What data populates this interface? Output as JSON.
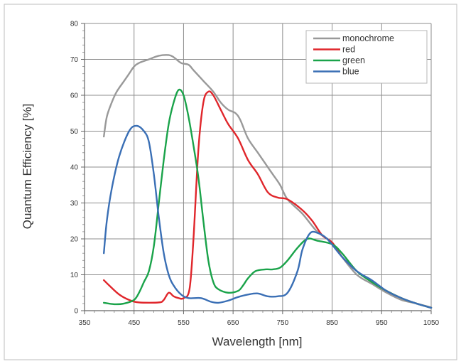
{
  "chart_data": {
    "type": "line",
    "xlabel": "Wavelength [nm]",
    "ylabel": "Quantum Efficiency [%]",
    "xlim": [
      350,
      1050
    ],
    "ylim": [
      0,
      80
    ],
    "xticks": [
      "350",
      "450",
      "550",
      "650",
      "750",
      "850",
      "950",
      "1050"
    ],
    "yticks": [
      "0",
      "10",
      "20",
      "30",
      "40",
      "50",
      "60",
      "70",
      "80"
    ],
    "grid": true,
    "legend_position": "top-right",
    "series": [
      {
        "name": "monochrome",
        "color": "#999999",
        "points": [
          [
            389,
            48.5
          ],
          [
            395,
            54
          ],
          [
            405,
            58
          ],
          [
            415,
            61
          ],
          [
            430,
            64
          ],
          [
            440,
            66
          ],
          [
            450,
            68
          ],
          [
            460,
            69
          ],
          [
            480,
            70
          ],
          [
            500,
            71
          ],
          [
            520,
            71.2
          ],
          [
            530,
            70.6
          ],
          [
            545,
            69
          ],
          [
            560,
            68.5
          ],
          [
            570,
            67
          ],
          [
            590,
            64
          ],
          [
            610,
            61
          ],
          [
            625,
            58
          ],
          [
            640,
            56
          ],
          [
            655,
            55
          ],
          [
            665,
            53
          ],
          [
            680,
            48
          ],
          [
            700,
            44
          ],
          [
            715,
            41
          ],
          [
            730,
            38
          ],
          [
            745,
            35
          ],
          [
            760,
            31
          ],
          [
            790,
            27
          ],
          [
            820,
            22
          ],
          [
            850,
            19
          ],
          [
            870,
            15
          ],
          [
            900,
            10
          ],
          [
            930,
            7.5
          ],
          [
            960,
            5
          ],
          [
            990,
            3
          ],
          [
            1020,
            2
          ],
          [
            1050,
            0.9
          ]
        ]
      },
      {
        "name": "red",
        "color": "#e0262b",
        "points": [
          [
            389,
            8.5
          ],
          [
            400,
            7
          ],
          [
            420,
            4.5
          ],
          [
            440,
            3
          ],
          [
            460,
            2.3
          ],
          [
            500,
            2.3
          ],
          [
            510,
            3
          ],
          [
            520,
            5
          ],
          [
            530,
            4
          ],
          [
            540,
            3.5
          ],
          [
            550,
            3.5
          ],
          [
            562,
            6
          ],
          [
            570,
            20
          ],
          [
            580,
            45
          ],
          [
            590,
            58
          ],
          [
            600,
            61
          ],
          [
            610,
            60
          ],
          [
            625,
            56
          ],
          [
            640,
            52
          ],
          [
            660,
            48
          ],
          [
            680,
            42
          ],
          [
            700,
            38
          ],
          [
            720,
            33
          ],
          [
            740,
            31.5
          ],
          [
            760,
            31
          ],
          [
            790,
            28
          ],
          [
            810,
            25
          ],
          [
            830,
            21
          ],
          [
            850,
            19
          ],
          [
            870,
            15
          ],
          [
            900,
            11
          ],
          [
            925,
            8.5
          ],
          [
            960,
            5.5
          ],
          [
            990,
            3.5
          ],
          [
            1020,
            2
          ],
          [
            1050,
            0.8
          ]
        ]
      },
      {
        "name": "green",
        "color": "#1aa34a",
        "points": [
          [
            389,
            2.2
          ],
          [
            410,
            1.8
          ],
          [
            430,
            2
          ],
          [
            450,
            3
          ],
          [
            460,
            5
          ],
          [
            470,
            8
          ],
          [
            480,
            11
          ],
          [
            490,
            18
          ],
          [
            500,
            30
          ],
          [
            510,
            42
          ],
          [
            520,
            52
          ],
          [
            530,
            58
          ],
          [
            540,
            61.5
          ],
          [
            550,
            60
          ],
          [
            560,
            54
          ],
          [
            570,
            46
          ],
          [
            580,
            37
          ],
          [
            590,
            25
          ],
          [
            600,
            14
          ],
          [
            610,
            8
          ],
          [
            620,
            6
          ],
          [
            640,
            5
          ],
          [
            660,
            5.5
          ],
          [
            670,
            7
          ],
          [
            680,
            9
          ],
          [
            695,
            11
          ],
          [
            715,
            11.5
          ],
          [
            730,
            11.5
          ],
          [
            745,
            12
          ],
          [
            760,
            14
          ],
          [
            780,
            17.5
          ],
          [
            800,
            20
          ],
          [
            820,
            19.5
          ],
          [
            850,
            18.5
          ],
          [
            870,
            16
          ],
          [
            900,
            11
          ],
          [
            930,
            8
          ],
          [
            960,
            5.5
          ],
          [
            990,
            3.5
          ],
          [
            1020,
            2
          ],
          [
            1050,
            0.8
          ]
        ]
      },
      {
        "name": "blue",
        "color": "#3a6fb5",
        "points": [
          [
            389,
            16
          ],
          [
            395,
            25
          ],
          [
            405,
            34
          ],
          [
            420,
            43
          ],
          [
            440,
            50
          ],
          [
            455,
            51.5
          ],
          [
            470,
            50
          ],
          [
            480,
            47
          ],
          [
            490,
            38
          ],
          [
            500,
            26
          ],
          [
            510,
            16
          ],
          [
            520,
            10
          ],
          [
            530,
            7
          ],
          [
            545,
            4.5
          ],
          [
            560,
            3.5
          ],
          [
            585,
            3.5
          ],
          [
            605,
            2.5
          ],
          [
            620,
            2.2
          ],
          [
            640,
            2.8
          ],
          [
            660,
            3.8
          ],
          [
            680,
            4.5
          ],
          [
            700,
            4.8
          ],
          [
            720,
            4
          ],
          [
            740,
            4
          ],
          [
            760,
            5
          ],
          [
            780,
            11
          ],
          [
            790,
            17
          ],
          [
            805,
            21.5
          ],
          [
            820,
            21.7
          ],
          [
            840,
            20
          ],
          [
            870,
            15
          ],
          [
            900,
            11
          ],
          [
            930,
            8.5
          ],
          [
            960,
            5.5
          ],
          [
            990,
            3.5
          ],
          [
            1020,
            2
          ],
          [
            1050,
            0.8
          ]
        ]
      }
    ]
  }
}
